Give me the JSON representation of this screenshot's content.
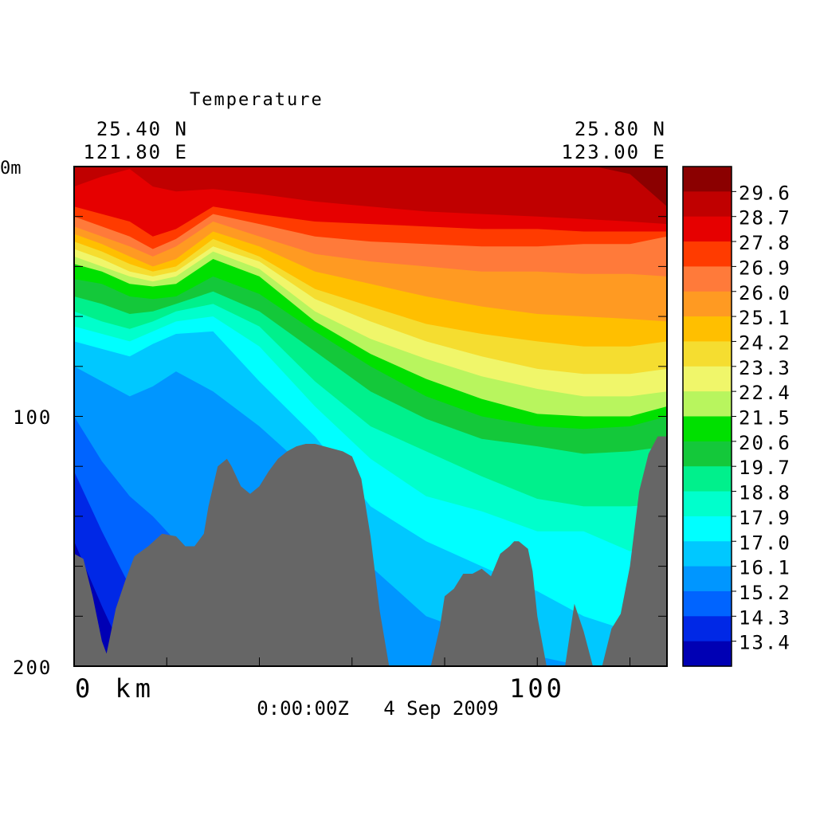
{
  "chart_data": {
    "type": "heatmap",
    "subtype": "filled-contour-section",
    "title": "Temperature",
    "corner_left": {
      "lat": "25.40 N",
      "lon": "121.80 E"
    },
    "corner_right": {
      "lat": "25.80 N",
      "lon": "123.00 E"
    },
    "y_axis": {
      "range": [
        0,
        200
      ],
      "inverted": true,
      "tick_labels": [
        "0m",
        "100",
        "200"
      ],
      "minor_step": 20
    },
    "x_axis": {
      "range_km": [
        0,
        128
      ],
      "tick_labels": [
        "0 km",
        "100"
      ],
      "minor_step": 20
    },
    "timestamp": "0:00:00Z   4 Sep 2009",
    "grid": false,
    "legend_position": "right",
    "colorbar": {
      "labels": [
        "29.6",
        "28.7",
        "27.8",
        "26.9",
        "26.0",
        "25.1",
        "24.2",
        "23.3",
        "22.4",
        "21.5",
        "20.6",
        "19.7",
        "18.8",
        "17.9",
        "17.0",
        "16.1",
        "15.2",
        "14.3",
        "13.4"
      ],
      "colors_top_to_bottom": [
        "#8b0000",
        "#c00000",
        "#e60000",
        "#ff3b00",
        "#ff7a3a",
        "#ff9a22",
        "#ffbf00",
        "#f5dd30",
        "#f0f66a",
        "#b8f55e",
        "#00e000",
        "#14c83a",
        "#00f08c",
        "#00ffcc",
        "#00ffff",
        "#00c8ff",
        "#0096ff",
        "#0064ff",
        "#0028e6",
        "#0000b4"
      ]
    },
    "isotherm_depths_m": {
      "x_km": [
        0,
        6,
        12,
        17,
        22,
        30,
        40,
        52,
        64,
        76,
        88,
        100,
        110,
        120,
        128
      ],
      "levels": [
        {
          "value": 29.6,
          "depth": [
            -1,
            -1,
            -1,
            -1,
            -1,
            -1,
            -1,
            -1,
            -1,
            -1,
            -1,
            -1,
            -1,
            3,
            16
          ]
        },
        {
          "value": 28.7,
          "depth": [
            8,
            4,
            1,
            8,
            10,
            9,
            11,
            14,
            16,
            18,
            19,
            20,
            21,
            22,
            23
          ]
        },
        {
          "value": 27.8,
          "depth": [
            16,
            19,
            22,
            28,
            25,
            16,
            19,
            22,
            23,
            24,
            25,
            25,
            26,
            26,
            26
          ]
        },
        {
          "value": 26.9,
          "depth": [
            20,
            24,
            28,
            33,
            29,
            19,
            23,
            28,
            30,
            31,
            32,
            32,
            31,
            31,
            28
          ]
        },
        {
          "value": 26.0,
          "depth": [
            24,
            28,
            32,
            36,
            32,
            22,
            28,
            35,
            38,
            40,
            42,
            42,
            43,
            43,
            44
          ]
        },
        {
          "value": 25.1,
          "depth": [
            27,
            31,
            36,
            40,
            37,
            26,
            32,
            42,
            47,
            52,
            56,
            59,
            60,
            61,
            62
          ]
        },
        {
          "value": 24.2,
          "depth": [
            30,
            34,
            39,
            42,
            40,
            29,
            36,
            49,
            56,
            63,
            67,
            70,
            72,
            72,
            70
          ]
        },
        {
          "value": 23.3,
          "depth": [
            33,
            37,
            42,
            44,
            42,
            32,
            38,
            53,
            62,
            70,
            76,
            81,
            83,
            83,
            81
          ]
        },
        {
          "value": 22.4,
          "depth": [
            36,
            40,
            44,
            46,
            44,
            34,
            41,
            58,
            69,
            77,
            84,
            89,
            92,
            92,
            90
          ]
        },
        {
          "value": 21.5,
          "depth": [
            39,
            42,
            47,
            48,
            47,
            37,
            44,
            62,
            75,
            85,
            93,
            99,
            100,
            100,
            96
          ]
        },
        {
          "value": 20.6,
          "depth": [
            45,
            47,
            52,
            53,
            52,
            44,
            51,
            66,
            80,
            92,
            100,
            104,
            105,
            104,
            100
          ]
        },
        {
          "value": 19.7,
          "depth": [
            52,
            55,
            59,
            58,
            55,
            50,
            58,
            74,
            90,
            101,
            109,
            112,
            115,
            114,
            112
          ]
        },
        {
          "value": 18.8,
          "depth": [
            58,
            62,
            65,
            62,
            58,
            55,
            64,
            86,
            104,
            114,
            124,
            133,
            136,
            136,
            135
          ]
        },
        {
          "value": 17.9,
          "depth": [
            64,
            67,
            70,
            66,
            62,
            60,
            72,
            96,
            117,
            132,
            138,
            146,
            146,
            154,
            150
          ]
        },
        {
          "value": 17.0,
          "depth": [
            70,
            73,
            76,
            71,
            67,
            66,
            86,
            108,
            136,
            150,
            160,
            170,
            180,
            186,
            190
          ]
        },
        {
          "value": 16.1,
          "depth": [
            80,
            86,
            92,
            88,
            82,
            90,
            104,
            124,
            160,
            180,
            188,
            196,
            200,
            200,
            200
          ]
        },
        {
          "value": 15.2,
          "depth": [
            100,
            118,
            132,
            140,
            150,
            160,
            176,
            196,
            200,
            200,
            200,
            200,
            200,
            200,
            200
          ]
        },
        {
          "value": 14.3,
          "depth": [
            122,
            146,
            168,
            184,
            200,
            200,
            200,
            200,
            200,
            200,
            200,
            200,
            200,
            200,
            200
          ]
        },
        {
          "value": 13.4,
          "depth": [
            150,
            176,
            200,
            200,
            200,
            200,
            200,
            200,
            200,
            200,
            200,
            200,
            200,
            200,
            200
          ]
        }
      ]
    },
    "bottom_depth_m": {
      "x_km": [
        0,
        2,
        4,
        6,
        7,
        9,
        11,
        13,
        16,
        19,
        22,
        24,
        26,
        28,
        29,
        31,
        33,
        34,
        36,
        38,
        40,
        42,
        44,
        46,
        48,
        50,
        52,
        54,
        56,
        58,
        60,
        62,
        64,
        66,
        68,
        70,
        72,
        73,
        75,
        77,
        79,
        80,
        82,
        84,
        86,
        88,
        90,
        92,
        94,
        95,
        96,
        98,
        99,
        100,
        102,
        104,
        106,
        108,
        110,
        112,
        114,
        116,
        118,
        120,
        122,
        124,
        126,
        128
      ],
      "depth": [
        155,
        157,
        172,
        190,
        195,
        177,
        166,
        156,
        152,
        147,
        148,
        152,
        152,
        147,
        136,
        120,
        117,
        120,
        128,
        131,
        128,
        122,
        117,
        114,
        112,
        111,
        111,
        112,
        113,
        114,
        116,
        125,
        148,
        178,
        200,
        200,
        200,
        200,
        200,
        200,
        184,
        172,
        169,
        163,
        163,
        161,
        164,
        155,
        152,
        150,
        150,
        153,
        162,
        180,
        200,
        200,
        200,
        175,
        186,
        200,
        200,
        185,
        179,
        160,
        130,
        115,
        108,
        108
      ]
    }
  }
}
